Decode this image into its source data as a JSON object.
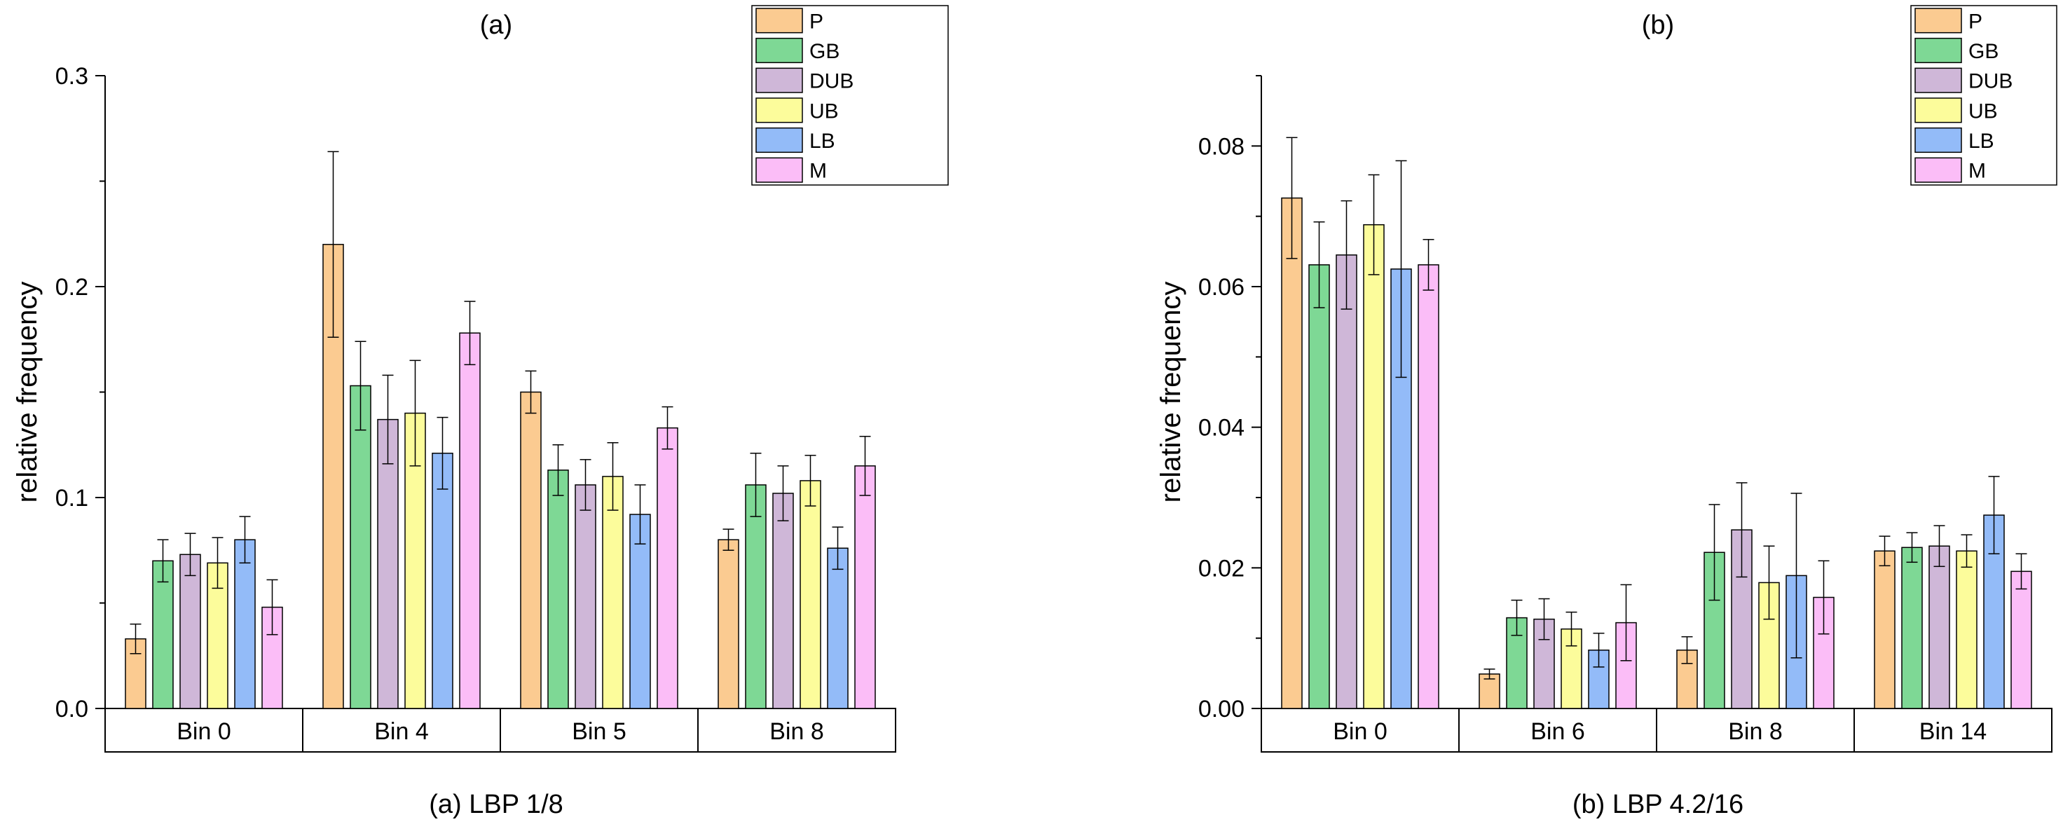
{
  "chart_data": [
    {
      "type": "bar",
      "title": "(a)",
      "caption": "(a) LBP 1/8",
      "xlabel": "",
      "ylabel": "relative frequency",
      "ylim": [
        0,
        0.3
      ],
      "yticks": [
        0.0,
        0.1,
        0.2,
        0.3
      ],
      "ytick_labels": [
        "0.0",
        "0.1",
        "0.2",
        "0.3"
      ],
      "categories": [
        "Bin 0",
        "Bin 4",
        "Bin 5",
        "Bin 8"
      ],
      "legend_position": "top-right",
      "series": [
        {
          "name": "P",
          "color": "#FBCB91",
          "values": [
            0.033,
            0.22,
            0.15,
            0.08
          ],
          "errors": [
            0.007,
            0.044,
            0.01,
            0.005
          ]
        },
        {
          "name": "GB",
          "color": "#7ED895",
          "values": [
            0.07,
            0.153,
            0.113,
            0.106
          ],
          "errors": [
            0.01,
            0.021,
            0.012,
            0.015
          ]
        },
        {
          "name": "DUB",
          "color": "#CFB7D8",
          "values": [
            0.073,
            0.137,
            0.106,
            0.102
          ],
          "errors": [
            0.01,
            0.021,
            0.012,
            0.013
          ]
        },
        {
          "name": "UB",
          "color": "#FCFC9B",
          "values": [
            0.069,
            0.14,
            0.11,
            0.108
          ],
          "errors": [
            0.012,
            0.025,
            0.016,
            0.012
          ]
        },
        {
          "name": "LB",
          "color": "#93BBF8",
          "values": [
            0.08,
            0.121,
            0.092,
            0.076
          ],
          "errors": [
            0.011,
            0.017,
            0.014,
            0.01
          ]
        },
        {
          "name": "M",
          "color": "#FBBDF7",
          "values": [
            0.048,
            0.178,
            0.133,
            0.115
          ],
          "errors": [
            0.013,
            0.015,
            0.01,
            0.014
          ]
        }
      ]
    },
    {
      "type": "bar",
      "title": "(b)",
      "caption": "(b) LBP 4.2/16",
      "xlabel": "",
      "ylabel": "relative frequency",
      "ylim": [
        0,
        0.09
      ],
      "yticks": [
        0.0,
        0.02,
        0.04,
        0.06,
        0.08
      ],
      "ytick_labels": [
        "0.00",
        "0.02",
        "0.04",
        "0.06",
        "0.08"
      ],
      "categories": [
        "Bin 0",
        "Bin 6",
        "Bin 8",
        "Bin 14"
      ],
      "legend_position": "top-right",
      "series": [
        {
          "name": "P",
          "color": "#FBCB91",
          "values": [
            0.0726,
            0.0049,
            0.0083,
            0.0224
          ],
          "errors": [
            0.0086,
            0.0007,
            0.0019,
            0.0021
          ]
        },
        {
          "name": "GB",
          "color": "#7ED895",
          "values": [
            0.0631,
            0.0129,
            0.0222,
            0.0229
          ],
          "errors": [
            0.0061,
            0.0025,
            0.0068,
            0.0021
          ]
        },
        {
          "name": "DUB",
          "color": "#CFB7D8",
          "values": [
            0.0645,
            0.0127,
            0.0254,
            0.0231
          ],
          "errors": [
            0.0077,
            0.0029,
            0.0067,
            0.0029
          ]
        },
        {
          "name": "UB",
          "color": "#FCFC9B",
          "values": [
            0.0688,
            0.0113,
            0.0179,
            0.0224
          ],
          "errors": [
            0.0071,
            0.0024,
            0.0052,
            0.0023
          ]
        },
        {
          "name": "LB",
          "color": "#93BBF8",
          "values": [
            0.0625,
            0.0083,
            0.0189,
            0.0275
          ],
          "errors": [
            0.0154,
            0.0024,
            0.0117,
            0.0055
          ]
        },
        {
          "name": "M",
          "color": "#FBBDF7",
          "values": [
            0.0631,
            0.0122,
            0.0158,
            0.0195
          ],
          "errors": [
            0.0036,
            0.0054,
            0.0052,
            0.0025
          ]
        }
      ]
    }
  ]
}
